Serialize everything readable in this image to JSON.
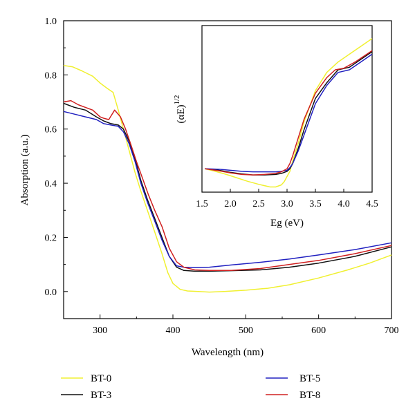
{
  "chart_data": [
    {
      "type": "line",
      "title": "",
      "xlabel": "Wavelength (nm)",
      "ylabel": "Absorption (a.u.)",
      "xlim": [
        250,
        700
      ],
      "ylim": [
        -0.1,
        1.0
      ],
      "xticks": [
        "300",
        "400",
        "500",
        "600",
        "700"
      ],
      "yticks": [
        "0.0",
        "0.2",
        "0.4",
        "0.6",
        "0.8",
        "1.0"
      ],
      "grid": false,
      "legend_position": "bottom",
      "series": [
        {
          "name": "BT-0",
          "color": "#f0f030",
          "x": [
            250,
            262,
            275,
            290,
            300,
            310,
            318,
            325,
            332,
            340,
            348,
            356,
            365,
            375,
            385,
            393,
            400,
            410,
            420,
            435,
            450,
            470,
            500,
            530,
            560,
            600,
            640,
            670,
            700
          ],
          "y": [
            0.835,
            0.83,
            0.815,
            0.795,
            0.77,
            0.75,
            0.735,
            0.67,
            0.6,
            0.52,
            0.44,
            0.37,
            0.3,
            0.22,
            0.14,
            0.07,
            0.03,
            0.008,
            0.002,
            0.0,
            -0.002,
            0.0,
            0.005,
            0.012,
            0.025,
            0.05,
            0.08,
            0.105,
            0.135
          ]
        },
        {
          "name": "BT-3",
          "color": "#111111",
          "x": [
            250,
            265,
            280,
            295,
            305,
            315,
            325,
            332,
            340,
            348,
            356,
            365,
            375,
            385,
            395,
            405,
            415,
            430,
            450,
            480,
            520,
            560,
            600,
            650,
            700
          ],
          "y": [
            0.695,
            0.68,
            0.67,
            0.645,
            0.63,
            0.62,
            0.615,
            0.6,
            0.555,
            0.49,
            0.41,
            0.34,
            0.27,
            0.2,
            0.13,
            0.09,
            0.078,
            0.075,
            0.075,
            0.077,
            0.08,
            0.09,
            0.105,
            0.13,
            0.165
          ]
        },
        {
          "name": "BT-5",
          "color": "#2020c0",
          "x": [
            250,
            265,
            280,
            295,
            305,
            315,
            325,
            332,
            340,
            348,
            356,
            365,
            375,
            385,
            395,
            405,
            415,
            430,
            450,
            480,
            520,
            560,
            600,
            650,
            700
          ],
          "y": [
            0.665,
            0.655,
            0.645,
            0.635,
            0.62,
            0.615,
            0.61,
            0.59,
            0.545,
            0.48,
            0.4,
            0.33,
            0.26,
            0.19,
            0.13,
            0.095,
            0.09,
            0.088,
            0.09,
            0.098,
            0.108,
            0.12,
            0.135,
            0.155,
            0.18
          ]
        },
        {
          "name": "BT-8",
          "color": "#d02020",
          "x": [
            250,
            260,
            270,
            280,
            290,
            300,
            305,
            312,
            320,
            328,
            335,
            342,
            350,
            358,
            366,
            375,
            385,
            395,
            405,
            415,
            430,
            450,
            480,
            520,
            560,
            600,
            650,
            700
          ],
          "y": [
            0.7,
            0.705,
            0.69,
            0.68,
            0.67,
            0.645,
            0.64,
            0.635,
            0.67,
            0.645,
            0.6,
            0.545,
            0.48,
            0.42,
            0.36,
            0.3,
            0.24,
            0.16,
            0.11,
            0.09,
            0.08,
            0.078,
            0.078,
            0.085,
            0.1,
            0.115,
            0.14,
            0.17
          ]
        }
      ]
    },
    {
      "type": "line",
      "title": "",
      "xlabel": "Eg (eV)",
      "ylabel_main": "(αE)",
      "ylabel_sup": "1/2",
      "xlim": [
        1.5,
        4.5
      ],
      "xticks": [
        "1.5",
        "2.0",
        "2.5",
        "3.0",
        "3.5",
        "4.0",
        "4.5"
      ],
      "y_scale": "arbitrary (no tick labels)",
      "grid": false,
      "series": [
        {
          "name": "BT-0",
          "color": "#f0f030",
          "x": [
            1.55,
            1.7,
            1.9,
            2.1,
            2.3,
            2.5,
            2.7,
            2.8,
            2.9,
            2.95,
            3.0,
            3.05,
            3.1,
            3.2,
            3.3,
            3.4,
            3.5,
            3.7,
            3.9,
            4.1,
            4.3,
            4.5
          ],
          "y": [
            0.45,
            0.41,
            0.35,
            0.28,
            0.21,
            0.15,
            0.1,
            0.1,
            0.14,
            0.2,
            0.3,
            0.4,
            0.6,
            0.95,
            1.35,
            1.65,
            1.95,
            2.3,
            2.5,
            2.65,
            2.8,
            2.95
          ]
        },
        {
          "name": "BT-3",
          "color": "#111111",
          "x": [
            1.55,
            1.8,
            2.0,
            2.2,
            2.4,
            2.6,
            2.8,
            2.9,
            3.0,
            3.05,
            3.1,
            3.2,
            3.3,
            3.4,
            3.5,
            3.7,
            3.9,
            4.1,
            4.3,
            4.5
          ],
          "y": [
            0.45,
            0.42,
            0.38,
            0.35,
            0.33,
            0.33,
            0.34,
            0.36,
            0.4,
            0.45,
            0.55,
            0.85,
            1.2,
            1.5,
            1.8,
            2.1,
            2.35,
            2.4,
            2.55,
            2.7
          ]
        },
        {
          "name": "BT-5",
          "color": "#2020c0",
          "x": [
            1.55,
            1.8,
            2.0,
            2.2,
            2.4,
            2.6,
            2.8,
            2.9,
            3.0,
            3.05,
            3.1,
            3.2,
            3.3,
            3.4,
            3.5,
            3.7,
            3.9,
            4.1,
            4.3,
            4.5
          ],
          "y": [
            0.45,
            0.44,
            0.42,
            0.4,
            0.39,
            0.39,
            0.39,
            0.4,
            0.42,
            0.47,
            0.55,
            0.8,
            1.1,
            1.4,
            1.7,
            2.05,
            2.3,
            2.35,
            2.5,
            2.65
          ]
        },
        {
          "name": "BT-8",
          "color": "#d02020",
          "x": [
            1.55,
            1.8,
            2.0,
            2.2,
            2.4,
            2.6,
            2.8,
            2.9,
            3.0,
            3.05,
            3.1,
            3.2,
            3.3,
            3.4,
            3.5,
            3.7,
            3.85,
            4.0,
            4.2,
            4.5
          ],
          "y": [
            0.45,
            0.41,
            0.37,
            0.34,
            0.33,
            0.34,
            0.36,
            0.39,
            0.45,
            0.55,
            0.7,
            1.05,
            1.4,
            1.65,
            1.9,
            2.2,
            2.35,
            2.38,
            2.5,
            2.72
          ]
        }
      ]
    }
  ]
}
